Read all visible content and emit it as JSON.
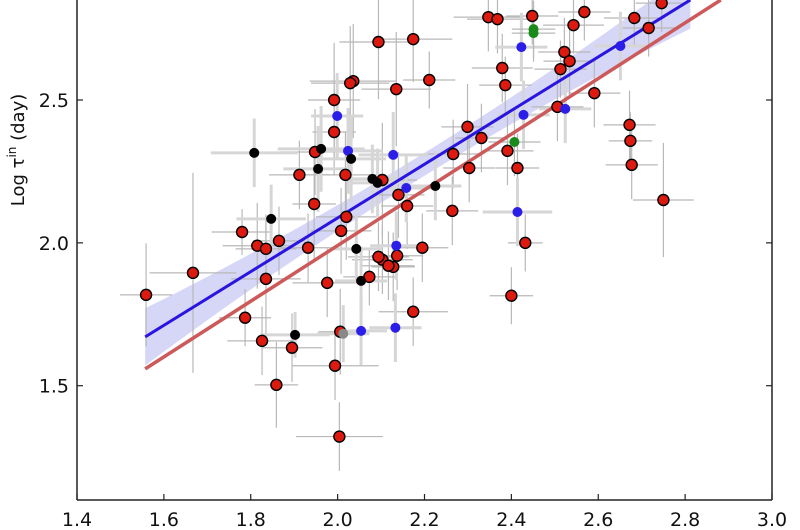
{
  "chart_data": {
    "type": "scatter",
    "title": "",
    "xlabel": "",
    "ylabel": {
      "prefix": "Log τ",
      "superscript": "in",
      "suffix": " (day)"
    },
    "xlim": [
      1.4,
      3.0
    ],
    "ylim": [
      1.1,
      2.85
    ],
    "xticks": [
      "1.4",
      "1.6",
      "1.8",
      "2.0",
      "2.2",
      "2.4",
      "2.6",
      "2.8",
      "3.0"
    ],
    "yticks": [
      "1.5",
      "2.0",
      "2.5"
    ],
    "grid": false,
    "colors": {
      "red": "#dd1a10",
      "blue": "#2a1ee8",
      "green": "#1a8a1a",
      "black": "#000000",
      "gray": "#888888",
      "fit_blue": "#2a14e0",
      "fit_red": "#cc5a5a",
      "band": "#c8c8f4",
      "errbar": "#b8b8b8",
      "errbar_thick": "#d6d6d6"
    },
    "series": [
      {
        "name": "red",
        "edge": true,
        "points": [
          [
            1.559,
            1.818,
            0.06,
            0.18
          ],
          [
            1.667,
            1.895,
            0.1,
            0.35
          ],
          [
            1.835,
            1.874,
            0.08,
            0.2
          ],
          [
            1.787,
            1.738,
            0.06,
            0.1
          ],
          [
            1.826,
            1.657,
            0.08,
            0.12
          ],
          [
            1.895,
            1.633,
            0.07,
            0.12
          ],
          [
            1.859,
            1.503,
            0.05,
            0.15
          ],
          [
            1.976,
            1.86,
            0.08,
            0.12
          ],
          [
            2.073,
            1.881,
            0.06,
            0.1
          ],
          [
            2.128,
            1.916,
            0.05,
            0.12
          ],
          [
            2.103,
            1.941,
            0.07,
            0.12
          ],
          [
            1.994,
            1.57,
            0.1,
            0.12
          ],
          [
            2.004,
            1.322,
            0.1,
            0.12
          ],
          [
            2.006,
            1.689,
            0.05,
            0.15
          ],
          [
            2.174,
            1.759,
            0.08,
            0.12
          ],
          [
            2.4,
            1.815,
            0.05,
            0.1
          ],
          [
            2.094,
            2.703,
            0.09,
            0.2
          ],
          [
            2.036,
            2.566,
            0.1,
            0.2
          ],
          [
            2.029,
            2.559,
            0.09,
            0.2
          ],
          [
            2.135,
            2.538,
            0.08,
            0.2
          ],
          [
            1.992,
            2.5,
            0.06,
            0.2
          ],
          [
            1.992,
            2.388,
            0.05,
            0.15
          ],
          [
            1.948,
            2.318,
            0.08,
            0.15
          ],
          [
            1.912,
            2.238,
            0.07,
            0.12
          ],
          [
            2.018,
            2.238,
            0.09,
            0.15
          ],
          [
            2.103,
            2.22,
            0.08,
            0.2
          ],
          [
            1.946,
            2.136,
            0.05,
            0.2
          ],
          [
            2.14,
            2.168,
            0.06,
            0.15
          ],
          [
            2.02,
            2.091,
            0.07,
            0.15
          ],
          [
            2.008,
            2.042,
            0.07,
            0.15
          ],
          [
            1.78,
            2.038,
            0.07,
            0.08
          ],
          [
            1.815,
            1.99,
            0.08,
            0.15
          ],
          [
            1.835,
            1.979,
            0.07,
            0.12
          ],
          [
            1.865,
            2.007,
            0.06,
            0.12
          ],
          [
            1.932,
            1.983,
            0.07,
            0.12
          ],
          [
            2.094,
            1.951,
            0.07,
            0.12
          ],
          [
            2.137,
            1.955,
            0.06,
            0.12
          ],
          [
            2.117,
            1.92,
            0.06,
            0.12
          ],
          [
            2.174,
            2.713,
            0.09,
            0.15
          ],
          [
            2.347,
            2.79,
            0.08,
            0.12
          ],
          [
            2.368,
            2.783,
            0.07,
            0.12
          ],
          [
            2.448,
            2.794,
            0.06,
            0.1
          ],
          [
            2.568,
            2.808,
            0.06,
            0.1
          ],
          [
            2.746,
            2.839,
            0.06,
            0.1
          ],
          [
            2.683,
            2.787,
            0.07,
            0.1
          ],
          [
            2.543,
            2.762,
            0.07,
            0.1
          ],
          [
            2.716,
            2.752,
            0.06,
            0.1
          ],
          [
            2.211,
            2.57,
            0.06,
            0.1
          ],
          [
            2.379,
            2.612,
            0.07,
            0.12
          ],
          [
            2.386,
            2.552,
            0.06,
            0.1
          ],
          [
            2.522,
            2.668,
            0.06,
            0.12
          ],
          [
            2.534,
            2.636,
            0.06,
            0.12
          ],
          [
            2.513,
            2.608,
            0.06,
            0.1
          ],
          [
            2.591,
            2.524,
            0.06,
            0.12
          ],
          [
            2.506,
            2.476,
            0.06,
            0.12
          ],
          [
            2.299,
            2.406,
            0.06,
            0.15
          ],
          [
            2.331,
            2.367,
            0.06,
            0.12
          ],
          [
            2.266,
            2.311,
            0.06,
            0.12
          ],
          [
            2.391,
            2.322,
            0.06,
            0.12
          ],
          [
            2.303,
            2.262,
            0.06,
            0.12
          ],
          [
            2.414,
            2.262,
            0.05,
            0.12
          ],
          [
            2.16,
            2.129,
            0.06,
            0.15
          ],
          [
            2.264,
            2.112,
            0.06,
            0.12
          ],
          [
            2.195,
            1.983,
            0.06,
            0.12
          ],
          [
            2.432,
            2.0,
            0.04,
            0.1
          ],
          [
            2.672,
            2.413,
            0.06,
            0.12
          ],
          [
            2.674,
            2.357,
            0.05,
            0.1
          ],
          [
            2.677,
            2.273,
            0.06,
            0.12
          ],
          [
            2.75,
            2.15,
            0.07,
            0.2
          ]
        ]
      },
      {
        "name": "blue",
        "edge": false,
        "points": [
          [
            2.423,
            2.685,
            0.06,
            0.12
          ],
          [
            2.651,
            2.689,
            0.06,
            0.12
          ],
          [
            2.428,
            2.448,
            0.06,
            0.12
          ],
          [
            2.524,
            2.469,
            0.06,
            0.12
          ],
          [
            2.158,
            2.192,
            0.06,
            0.12
          ],
          [
            2.414,
            2.108,
            0.08,
            0.12
          ],
          [
            1.999,
            2.444,
            0.06,
            0.15
          ],
          [
            2.024,
            2.322,
            0.08,
            0.15
          ],
          [
            2.128,
            2.308,
            0.08,
            0.15
          ],
          [
            2.135,
            1.99,
            0.06,
            0.12
          ],
          [
            2.054,
            1.692,
            0.06,
            0.12
          ],
          [
            2.133,
            1.703,
            0.06,
            0.12
          ]
        ]
      },
      {
        "name": "green",
        "edge": false,
        "points": [
          [
            2.451,
            2.748,
            0.05,
            0.1
          ],
          [
            2.451,
            2.734,
            0.05,
            0.1
          ],
          [
            2.407,
            2.353,
            0.06,
            0.12
          ]
        ]
      },
      {
        "name": "black",
        "edge": false,
        "points": [
          [
            2.225,
            2.199,
            0.06,
            0.12
          ],
          [
            1.808,
            2.315,
            0.1,
            0.12
          ],
          [
            1.962,
            2.329,
            0.1,
            0.15
          ],
          [
            1.955,
            2.259,
            0.08,
            0.15
          ],
          [
            2.031,
            2.294,
            0.08,
            0.15
          ],
          [
            1.847,
            2.084,
            0.08,
            0.12
          ],
          [
            2.043,
            1.979,
            0.06,
            0.12
          ],
          [
            2.08,
            2.224,
            0.06,
            0.12
          ],
          [
            2.092,
            2.21,
            0.06,
            0.12
          ],
          [
            2.054,
            1.867,
            0.06,
            0.12
          ],
          [
            1.902,
            1.678,
            0.08,
            0.08
          ]
        ]
      },
      {
        "name": "gray",
        "edge": false,
        "points": [
          [
            2.013,
            1.682,
            0.06,
            0.1
          ]
        ]
      }
    ],
    "fits": [
      {
        "name": "blue-fit",
        "x": [
          1.557,
          2.812
        ],
        "y": [
          1.671,
          2.85
        ],
        "band": 0.1,
        "band_center": 0.04
      },
      {
        "name": "red-fit",
        "x": [
          1.557,
          2.882
        ],
        "y": [
          1.559,
          2.85
        ]
      }
    ]
  }
}
